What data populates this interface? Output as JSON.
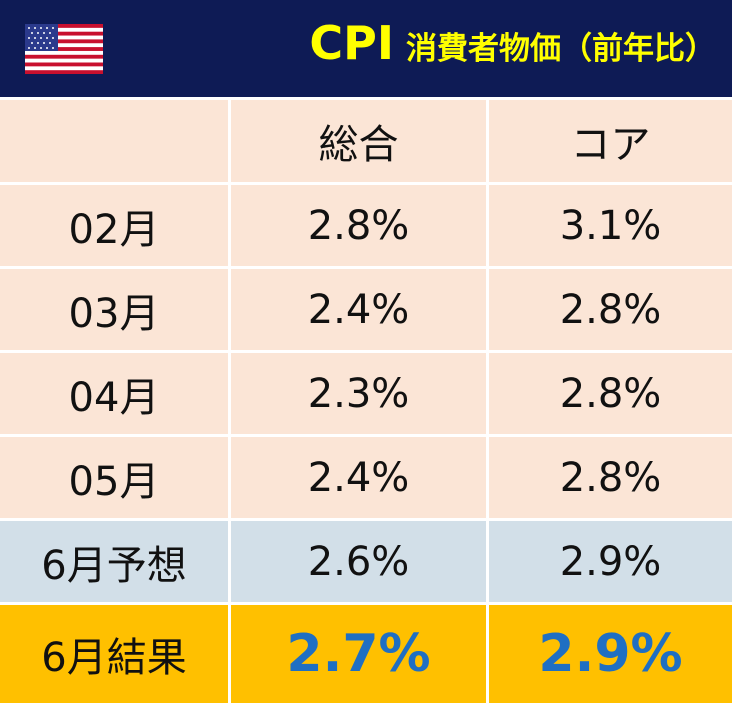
{
  "header": {
    "title": "CPI",
    "subtitle": "消費者物価（前年比）"
  },
  "table": {
    "columns": [
      "総合",
      "コア"
    ],
    "rows": [
      [
        "02月",
        "2.8%",
        "3.1%"
      ],
      [
        "03月",
        "2.4%",
        "2.8%"
      ],
      [
        "04月",
        "2.3%",
        "2.8%"
      ],
      [
        "05月",
        "2.4%",
        "2.8%"
      ],
      [
        "6月予想",
        "2.6%",
        "2.9%"
      ],
      [
        "6月結果",
        "2.7%",
        "2.9%"
      ]
    ]
  }
}
